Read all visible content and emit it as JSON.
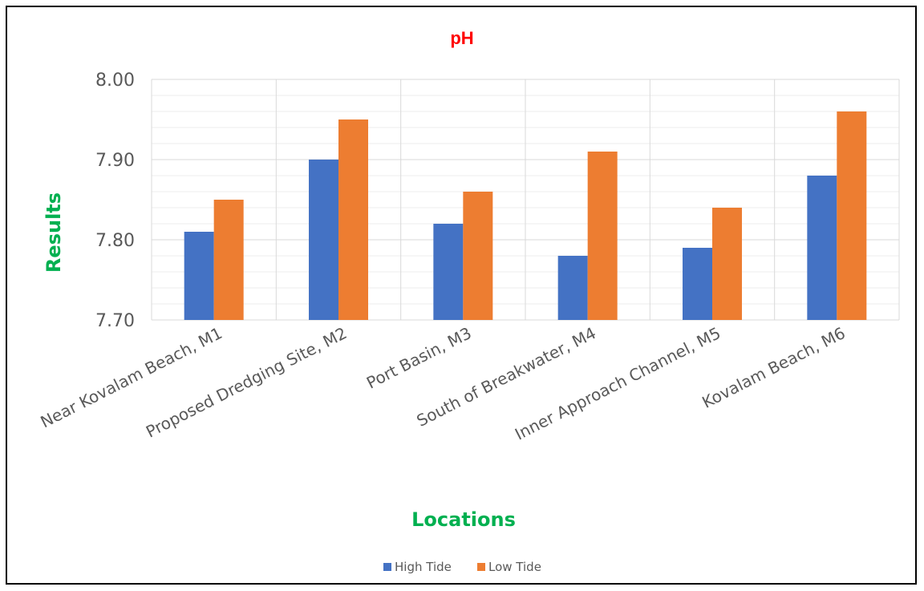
{
  "chart_data": {
    "type": "bar",
    "title": "pH",
    "xlabel": "Locations",
    "ylabel": "Results",
    "categories": [
      "Near Kovalam Beach, M1",
      "Proposed Dredging Site, M2",
      "Port Basin, M3",
      "South of Breakwater, M4",
      "Inner Approach Channel, M5",
      "Kovalam Beach, M6"
    ],
    "series": [
      {
        "name": "High Tide",
        "values": [
          7.81,
          7.9,
          7.82,
          7.78,
          7.79,
          7.88
        ]
      },
      {
        "name": "Low Tide",
        "values": [
          7.85,
          7.95,
          7.86,
          7.91,
          7.84,
          7.96
        ]
      }
    ],
    "ylim": [
      7.7,
      8.0
    ],
    "yticks": [
      "7.70",
      "7.80",
      "7.90",
      "8.00"
    ],
    "grid": true,
    "legend_position": "bottom",
    "colors": {
      "series": [
        "#4472C4",
        "#ED7D31"
      ],
      "title": "#FF0000",
      "axis_titles": "#00B050",
      "grid_major": "#D9D9D9",
      "grid_minor": "#EDEDED"
    }
  }
}
